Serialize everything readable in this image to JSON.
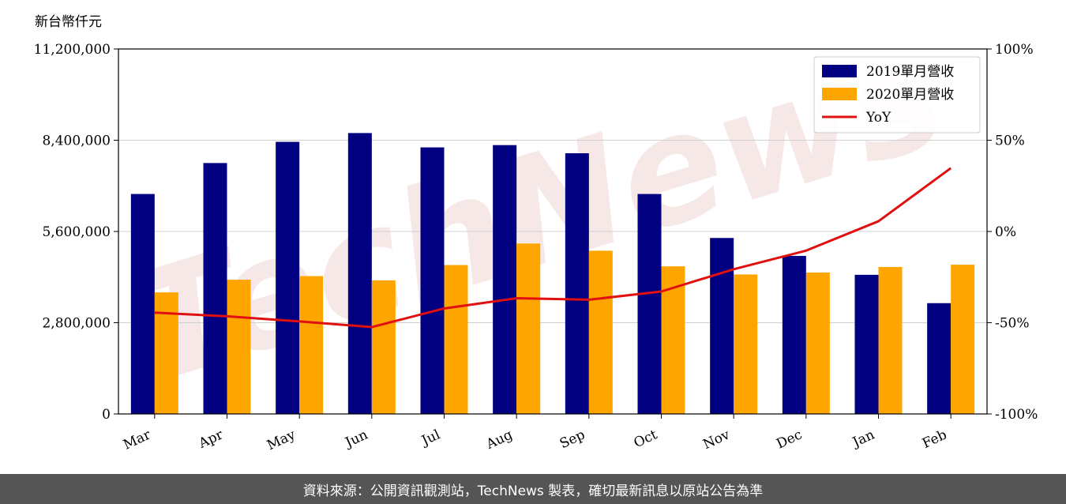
{
  "chart_data": {
    "type": "bar",
    "left_axis_unit": "新台幣仟元",
    "categories": [
      "Mar",
      "Apr",
      "May",
      "Jun",
      "Jul",
      "Aug",
      "Sep",
      "Oct",
      "Nov",
      "Dec",
      "Jan",
      "Feb"
    ],
    "series": [
      {
        "name": "2019單月營收",
        "type": "bar",
        "color": "#000080",
        "values": [
          6750000,
          7700000,
          8350000,
          8620000,
          8180000,
          8250000,
          8000000,
          6750000,
          5400000,
          4850000,
          4270000,
          3400000
        ]
      },
      {
        "name": "2020單月營收",
        "type": "bar",
        "color": "#FFA500",
        "values": [
          3730000,
          4120000,
          4230000,
          4100000,
          4570000,
          5230000,
          5010000,
          4530000,
          4280000,
          4340000,
          4510000,
          4580000
        ]
      },
      {
        "name": "YoY",
        "type": "line",
        "axis": "right",
        "color": "#E01010",
        "values": [
          -44.5,
          -46.5,
          -49.3,
          -52.4,
          -42.2,
          -36.6,
          -37.4,
          -32.9,
          -20.7,
          -10.5,
          5.6,
          34.7
        ]
      }
    ],
    "ylim": [
      0,
      11200000
    ],
    "yticks": [
      "0",
      "2,800,000",
      "5,600,000",
      "8,400,000",
      "11,200,000"
    ],
    "y2lim": [
      -100,
      100
    ],
    "y2ticks": [
      "-100%",
      "-50%",
      "0%",
      "50%",
      "100%"
    ],
    "grid": true,
    "legend": "top-right"
  },
  "watermark": "TechNews",
  "footer": {
    "text": "資料來源：公開資訊觀測站，TechNews 製表，確切最新訊息以原站公告為準"
  }
}
